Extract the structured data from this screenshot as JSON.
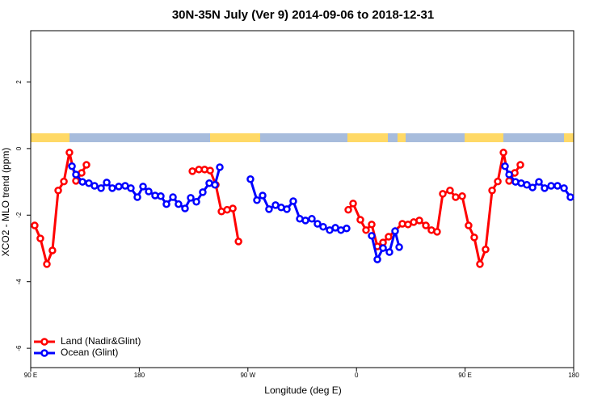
{
  "chart_data": {
    "type": "line",
    "title": "30N-35N July (Ver 9)   2014-09-06 to 2018-12-31",
    "x_label": "Longitude (deg E)",
    "y_label": "XCO2 - MLO trend (ppm)",
    "xlim": [
      90,
      540
    ],
    "ylim": [
      -6.58,
      3.54
    ],
    "xticks": [
      {
        "value": 90,
        "label": "90 E"
      },
      180,
      {
        "value": 270,
        "label": "90 W"
      },
      {
        "value": 360,
        "label": "0"
      },
      {
        "value": 450,
        "label": "90 E"
      },
      {
        "value": 540,
        "label": "180"
      }
    ],
    "yticks": [
      2,
      0,
      -2,
      -4,
      -6
    ],
    "legend": "bottom-left",
    "series": [
      {
        "name": "Land (Nadir&Glint)",
        "color": "#ff0000",
        "x": [
          93.3,
          98.0,
          103.4,
          108.0,
          112.8,
          117.5,
          122.1,
          127.5,
          132.2,
          136.2,
          null,
          224.0,
          229.4,
          234.1,
          238.7,
          243.4,
          248.1,
          252.8,
          257.5,
          262.2,
          null,
          353.2,
          357.2,
          363.2,
          367.9,
          372.6,
          377.3,
          382.0,
          386.6,
          398.0,
          402.7,
          407.4,
          412.1,
          417.5,
          422.1,
          426.8,
          431.5,
          437.5,
          442.2,
          447.6,
          452.9,
          457.6,
          462.3,
          467.0,
          472.4,
          477.1,
          481.8,
          486.5,
          491.2,
          495.8
        ],
        "values": [
          -2.31,
          -2.7,
          -3.47,
          -3.06,
          -1.26,
          -0.99,
          -0.12,
          -0.97,
          -0.73,
          -0.49,
          null,
          -0.68,
          -0.63,
          -0.63,
          -0.66,
          -1.09,
          -1.89,
          -1.84,
          -1.8,
          -2.79,
          null,
          -1.84,
          -1.65,
          -2.14,
          -2.45,
          -2.28,
          -2.94,
          -2.82,
          -2.65,
          -2.26,
          -2.28,
          -2.21,
          -2.16,
          -2.31,
          -2.45,
          -2.5,
          -1.36,
          -1.26,
          -1.46,
          -1.43,
          -2.31,
          -2.67,
          -3.47,
          -3.03,
          -1.26,
          -0.99,
          -0.12,
          -0.97,
          -0.73,
          -0.49
        ]
      },
      {
        "name": "Ocean (Glint)",
        "color": "#0000ff",
        "x": [
          124.2,
          127.5,
          132.9,
          138.2,
          142.9,
          148.3,
          153.0,
          157.6,
          163.0,
          168.3,
          173.0,
          178.4,
          183.1,
          187.8,
          193.1,
          197.8,
          202.5,
          207.9,
          212.5,
          217.9,
          222.6,
          227.3,
          232.6,
          238.0,
          242.7,
          246.7,
          null,
          272.1,
          277.5,
          282.2,
          287.5,
          292.9,
          297.6,
          302.3,
          307.6,
          313.0,
          317.7,
          323.0,
          327.7,
          332.4,
          337.8,
          342.5,
          347.1,
          351.8,
          null,
          372.6,
          377.3,
          382.0,
          387.3,
          392.0,
          395.4,
          null,
          483.1,
          486.5,
          491.8,
          496.5,
          501.2,
          505.9,
          511.2,
          515.9,
          521.3,
          526.6,
          532.0,
          537.3
        ],
        "values": [
          -0.53,
          -0.78,
          -1.0,
          -1.04,
          -1.12,
          -1.19,
          -1.02,
          -1.19,
          -1.14,
          -1.12,
          -1.19,
          -1.46,
          -1.14,
          -1.29,
          -1.41,
          -1.43,
          -1.67,
          -1.46,
          -1.67,
          -1.8,
          -1.48,
          -1.6,
          -1.31,
          -1.04,
          -1.09,
          -0.56,
          null,
          -0.92,
          -1.55,
          -1.41,
          -1.82,
          -1.7,
          -1.77,
          -1.82,
          -1.58,
          -2.11,
          -2.16,
          -2.11,
          -2.26,
          -2.35,
          -2.45,
          -2.38,
          -2.45,
          -2.4,
          null,
          -2.62,
          -3.33,
          -2.99,
          -3.11,
          -2.48,
          -2.96,
          null,
          -0.53,
          -0.78,
          -1.0,
          -1.04,
          -1.09,
          -1.17,
          -1.0,
          -1.19,
          -1.12,
          -1.12,
          -1.19,
          -1.46
        ]
      }
    ]
  }
}
